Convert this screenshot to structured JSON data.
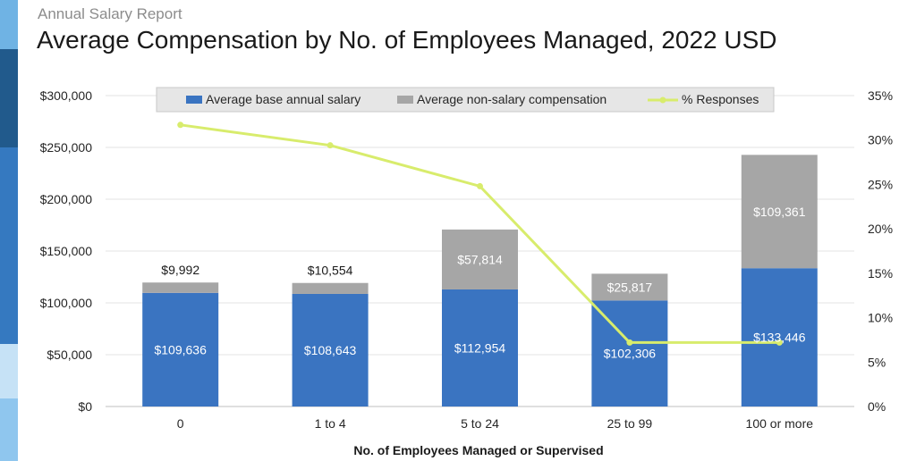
{
  "header": {
    "subtitle": "Annual Salary Report",
    "title": "Average Compensation by No. of Employees Managed, 2022 USD"
  },
  "colors": {
    "base": "#3a74c1",
    "non_salary": "#a6a6a6",
    "line": "#d8ec6c",
    "grid": "#e3e3e3",
    "legend_bg": "#e6e6e6"
  },
  "chart_data": {
    "type": "bar",
    "stacked": true,
    "categories": [
      "0",
      "1 to 4",
      "5 to 24",
      "25 to 99",
      "100 or more"
    ],
    "xlabel": "No. of Employees Managed or Supervised",
    "ylabel": "",
    "ylim": [
      0,
      300000
    ],
    "y2lim": [
      0,
      35
    ],
    "yticks": [
      "$0",
      "$50,000",
      "$100,000",
      "$150,000",
      "$200,000",
      "$250,000",
      "$300,000"
    ],
    "y2ticks": [
      "0%",
      "5%",
      "10%",
      "15%",
      "20%",
      "25%",
      "30%",
      "35%"
    ],
    "legend_position": "top",
    "grid": true,
    "series": [
      {
        "name": "Average base annual salary",
        "type": "bar",
        "values": [
          109636,
          108643,
          112954,
          102306,
          133446
        ],
        "labels": [
          "$109,636",
          "$108,643",
          "$112,954",
          "$102,306",
          "$133,446"
        ]
      },
      {
        "name": "Average non-salary compensation",
        "type": "bar",
        "values": [
          9992,
          10554,
          57814,
          25817,
          109361
        ],
        "labels": [
          "$9,992",
          "$10,554",
          "$57,814",
          "$25,817",
          "$109,361"
        ]
      },
      {
        "name": "% Responses",
        "type": "line",
        "axis": "right",
        "values": [
          31.7,
          29.4,
          24.8,
          7.2,
          7.2
        ]
      }
    ]
  }
}
